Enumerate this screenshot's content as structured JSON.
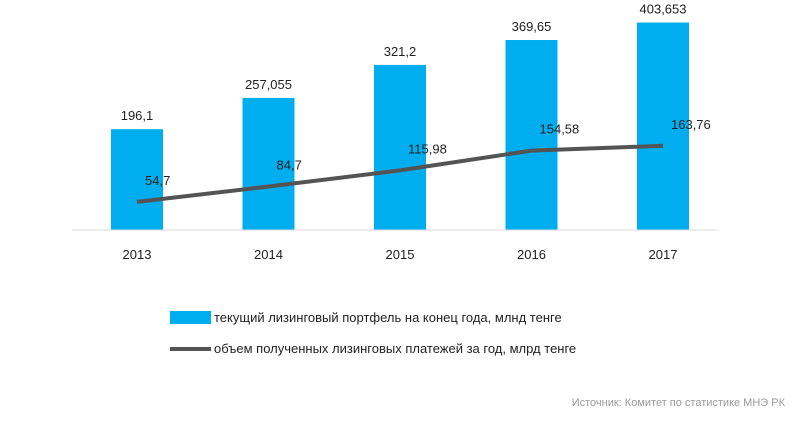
{
  "chart_data": {
    "type": "bar",
    "categories": [
      "2013",
      "2014",
      "2015",
      "2016",
      "2017"
    ],
    "series": [
      {
        "name": "текущий лизинговый портфель на конец года, млнд тенге",
        "type": "bar",
        "values": [
          196.1,
          257.055,
          321.2,
          369.65,
          403.653
        ],
        "labels": [
          "196,1",
          "257,055",
          "321,2",
          "369,65",
          "403,653"
        ],
        "color": "#00adef"
      },
      {
        "name": "объем полученных лизинговых платежей за год, млрд тенге",
        "type": "line",
        "values": [
          54.7,
          84.7,
          115.98,
          154.58,
          163.76
        ],
        "labels": [
          "54,7",
          "84,7",
          "115,98",
          "154,58",
          "163,76"
        ],
        "color": "#545454"
      }
    ],
    "ylim": [
      0,
      430
    ],
    "grid": false,
    "legend_position": "bottom"
  },
  "source": "Источник: Комитет по статистике МНЭ РК"
}
